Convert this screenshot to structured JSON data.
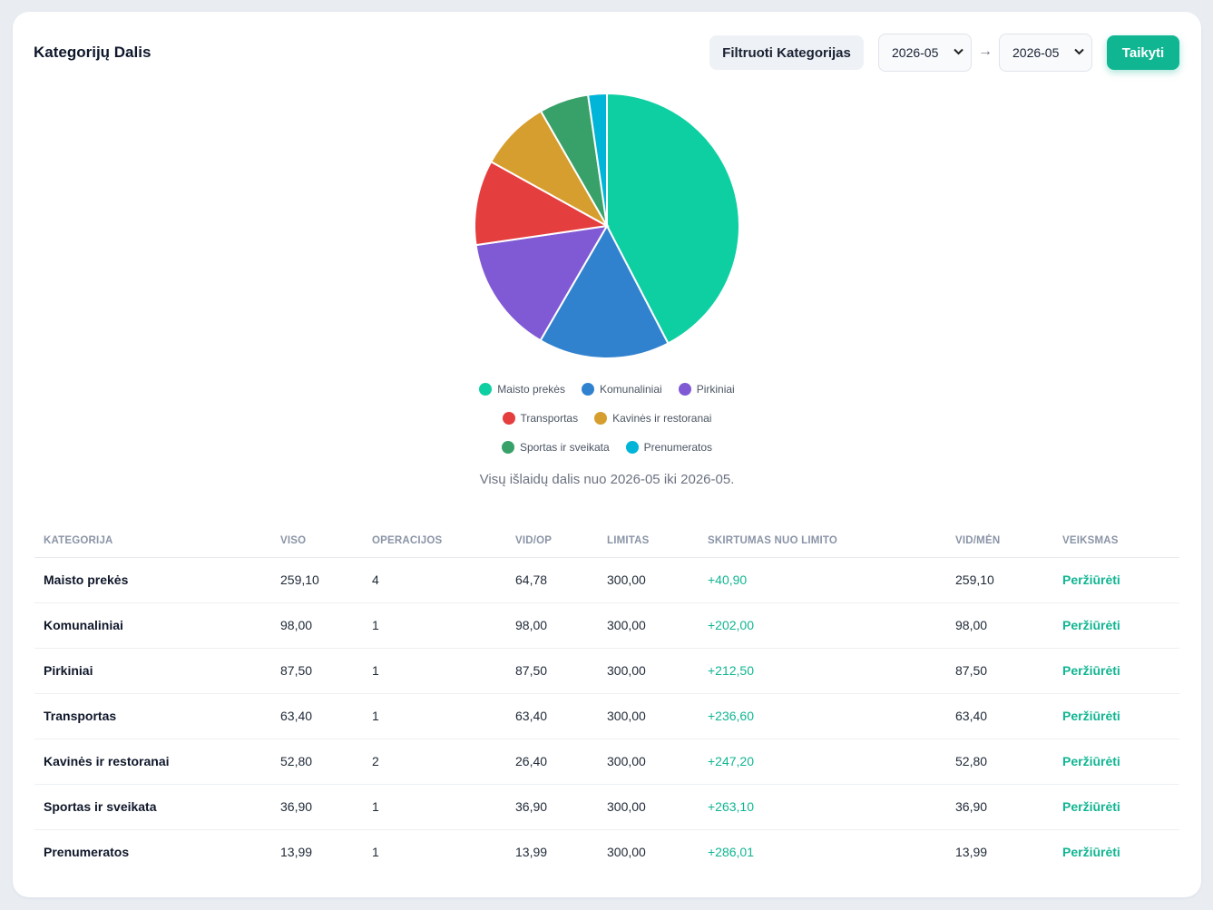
{
  "header": {
    "title": "Kategorijų Dalis",
    "filter_label": "Filtruoti Kategorijas",
    "from_value": "2026-05",
    "to_value": "2026-05",
    "arrow": "→",
    "apply_label": "Taikyti"
  },
  "chart_data": {
    "type": "pie",
    "series": [
      {
        "name": "Maisto prekės",
        "value": 259.1,
        "color": "#0ecfa2"
      },
      {
        "name": "Komunaliniai",
        "value": 98.0,
        "color": "#3182ce"
      },
      {
        "name": "Pirkiniai",
        "value": 87.5,
        "color": "#805ad5"
      },
      {
        "name": "Transportas",
        "value": 63.4,
        "color": "#e53e3e"
      },
      {
        "name": "Kavinės ir restoranai",
        "value": 52.8,
        "color": "#d69e2e"
      },
      {
        "name": "Sportas ir sveikata",
        "value": 36.9,
        "color": "#38a169"
      },
      {
        "name": "Prenumeratos",
        "value": 13.99,
        "color": "#00b5d8"
      }
    ],
    "legend_position": "bottom"
  },
  "caption": "Visų išlaidų dalis nuo 2026-05 iki 2026-05.",
  "table": {
    "headers": [
      "KATEGORIJA",
      "VISO",
      "OPERACIJOS",
      "VID/OP",
      "LIMITAS",
      "SKIRTUMAS NUO LIMITO",
      "VID/MĖN",
      "VEIKSMAS"
    ],
    "rows": [
      {
        "category": "Maisto prekės",
        "total": "259,10",
        "ops": "4",
        "avg_op": "64,78",
        "limit": "300,00",
        "diff": "+40,90",
        "avg_month": "259,10",
        "action": "Peržiūrėti"
      },
      {
        "category": "Komunaliniai",
        "total": "98,00",
        "ops": "1",
        "avg_op": "98,00",
        "limit": "300,00",
        "diff": "+202,00",
        "avg_month": "98,00",
        "action": "Peržiūrėti"
      },
      {
        "category": "Pirkiniai",
        "total": "87,50",
        "ops": "1",
        "avg_op": "87,50",
        "limit": "300,00",
        "diff": "+212,50",
        "avg_month": "87,50",
        "action": "Peržiūrėti"
      },
      {
        "category": "Transportas",
        "total": "63,40",
        "ops": "1",
        "avg_op": "63,40",
        "limit": "300,00",
        "diff": "+236,60",
        "avg_month": "63,40",
        "action": "Peržiūrėti"
      },
      {
        "category": "Kavinės ir restoranai",
        "total": "52,80",
        "ops": "2",
        "avg_op": "26,40",
        "limit": "300,00",
        "diff": "+247,20",
        "avg_month": "52,80",
        "action": "Peržiūrėti"
      },
      {
        "category": "Sportas ir sveikata",
        "total": "36,90",
        "ops": "1",
        "avg_op": "36,90",
        "limit": "300,00",
        "diff": "+263,10",
        "avg_month": "36,90",
        "action": "Peržiūrėti"
      },
      {
        "category": "Prenumeratos",
        "total": "13,99",
        "ops": "1",
        "avg_op": "13,99",
        "limit": "300,00",
        "diff": "+286,01",
        "avg_month": "13,99",
        "action": "Peržiūrėti"
      }
    ]
  }
}
